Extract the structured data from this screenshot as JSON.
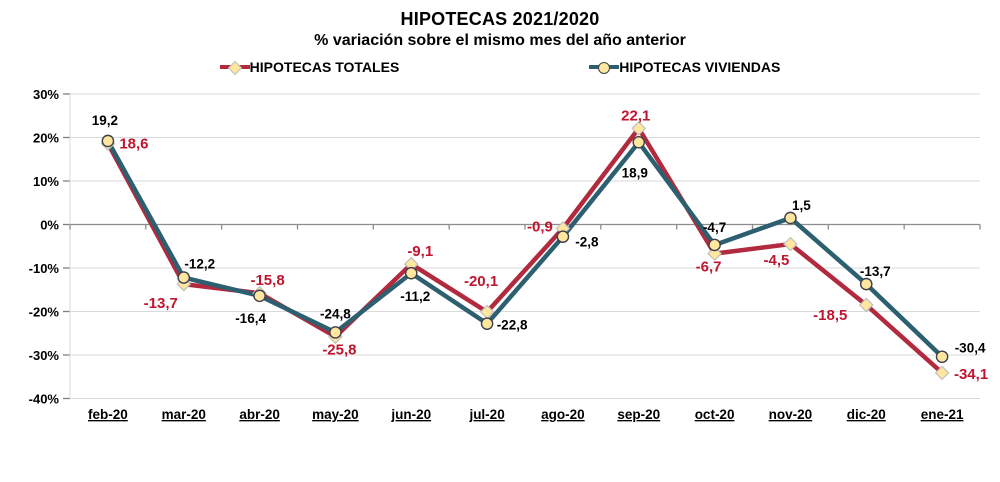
{
  "title": "HIPOTECAS 2021/2020",
  "subtitle": "% variación sobre el mismo mes del año anterior",
  "legend": {
    "items": [
      {
        "label": "HIPOTECAS TOTALES",
        "marker": "diamond"
      },
      {
        "label": "HIPOTECAS VIVIENDAS",
        "marker": "circle"
      }
    ]
  },
  "chart_data": {
    "type": "line",
    "title": "HIPOTECAS 2021/2020",
    "subtitle": "% variación sobre el mismo mes del año anterior",
    "categories": [
      "feb-20",
      "mar-20",
      "abr-20",
      "may-20",
      "jun-20",
      "jul-20",
      "ago-20",
      "sep-20",
      "oct-20",
      "nov-20",
      "dic-20",
      "ene-21"
    ],
    "series": [
      {
        "name": "HIPOTECAS TOTALES",
        "marker": "diamond",
        "color": "#B22A3D",
        "label_color": "#C0152F",
        "values": [
          18.6,
          -13.7,
          -15.8,
          -25.8,
          -9.1,
          -20.1,
          -0.9,
          22.1,
          -6.7,
          -4.5,
          -18.5,
          -34.1
        ],
        "labels": [
          "18,6",
          "-13,7",
          "-15,8",
          "-25,8",
          "-9,1",
          "-20,1",
          "-0,9",
          "22,1",
          "-6,7",
          "-4,5",
          "-18,5",
          "-34,1"
        ]
      },
      {
        "name": "HIPOTECAS VIVIENDAS",
        "marker": "circle",
        "color": "#2C5F6F",
        "label_color": "#000000",
        "values": [
          19.2,
          -12.2,
          -16.4,
          -24.8,
          -11.2,
          -22.8,
          -2.8,
          18.9,
          -4.7,
          1.5,
          -13.7,
          -30.4
        ],
        "labels": [
          "19,2",
          "-12,2",
          "-16,4",
          "-24,8",
          "-11,2",
          "-22,8",
          "-2,8",
          "18,9",
          "-4,7",
          "1,5",
          "-13,7",
          "-30,4"
        ]
      }
    ],
    "yticks": [
      {
        "label": "30%",
        "value": 30
      },
      {
        "label": "20%",
        "value": 20
      },
      {
        "label": "10%",
        "value": 10
      },
      {
        "label": "0%",
        "value": 0
      },
      {
        "label": "-10%",
        "value": -10
      },
      {
        "label": "-20%",
        "value": -20
      },
      {
        "label": "-30%",
        "value": -30
      },
      {
        "label": "-40%",
        "value": -40
      }
    ],
    "ylim": [
      -40,
      30
    ],
    "grid": true,
    "legend_position": "top",
    "marker_fill": "#FFE79F",
    "circle_stroke": "#3F3F4A",
    "diamond_stroke": "#BFBFBF",
    "grid_color": "#D9D9D9",
    "zero_axis_color": "#8C8C8C",
    "tick_color": "#7F7F7F",
    "axis_line_color": "#D9D9D9"
  }
}
